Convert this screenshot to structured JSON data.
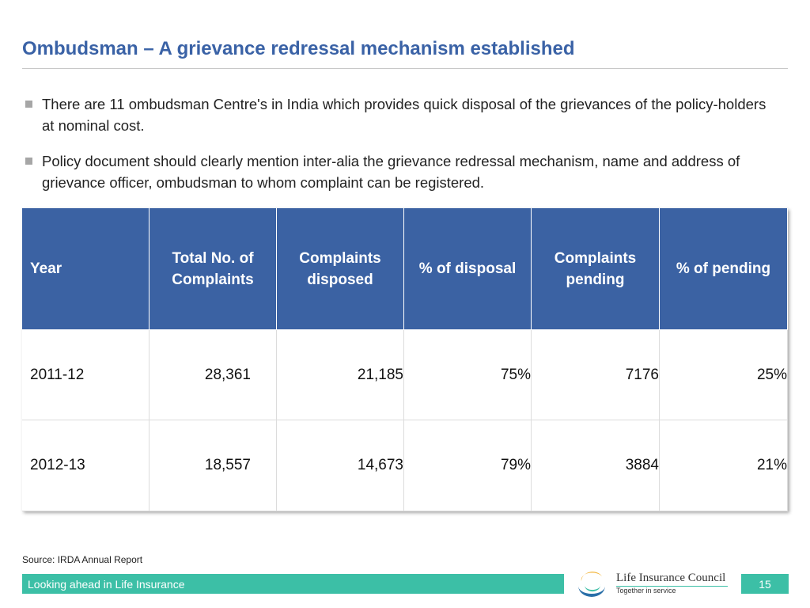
{
  "header": {
    "title": "Ombudsman – A grievance redressal mechanism established"
  },
  "bullets": [
    "There are 11 ombudsman Centre's in India which provides quick disposal of the grievances of the policy-holders at nominal cost.",
    "Policy document should clearly mention inter-alia the grievance redressal mechanism, name and address of grievance officer, ombudsman to whom complaint can be  registered."
  ],
  "table": {
    "columns": [
      "Year",
      "Total No. of Complaints",
      "Complaints disposed",
      "% of disposal",
      "Complaints pending",
      "% of pending"
    ],
    "rows": [
      [
        "2011-12",
        "28,361",
        "21,185",
        "75%",
        "7176",
        "25%"
      ],
      [
        "2012-13",
        "18,557",
        "14,673",
        "79%",
        "3884",
        "21%"
      ]
    ]
  },
  "source": "Source: IRDA Annual Report",
  "footer": {
    "tagline": "Looking ahead in Life Insurance",
    "logo_name": "Life Insurance Council",
    "logo_motto": "Together in service",
    "page_number": "15"
  }
}
